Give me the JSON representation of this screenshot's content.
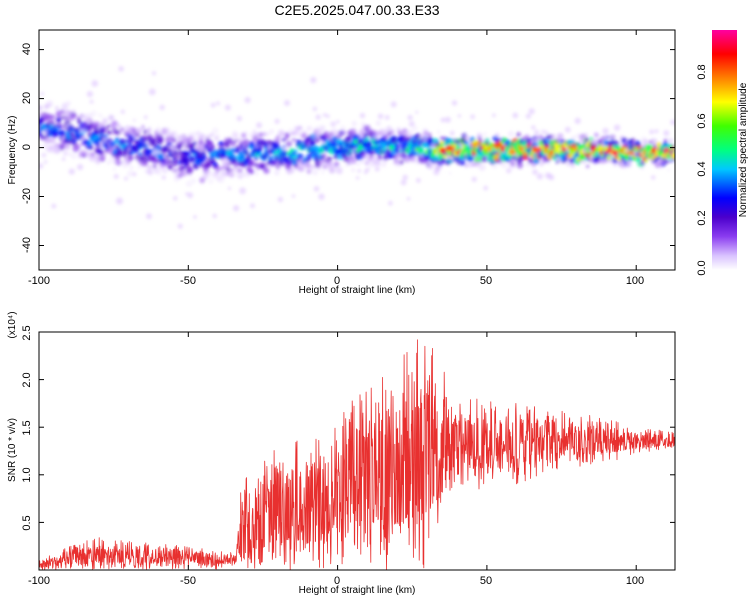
{
  "title": "C2E5.2025.047.00.33.E33",
  "colors": {
    "snr_line": "#e8302f",
    "colormap": [
      "#ffffff",
      "#e2ccff",
      "#8a3cf0",
      "#4b00cc",
      "#0000ff",
      "#00c8ff",
      "#00ff80",
      "#40ff00",
      "#ffff00",
      "#ff8000",
      "#ff0000",
      "#ff00a0"
    ]
  },
  "chart_data": [
    {
      "type": "heatmap",
      "title": "C2E5.2025.047.00.33.E33",
      "xlabel": "Height of straight line (km)",
      "ylabel": "Frequency (Hz)",
      "xlim": [
        -100,
        113
      ],
      "ylim": [
        -50,
        48
      ],
      "x_ticks": [
        "-100",
        "-50",
        "0",
        "50",
        "100"
      ],
      "y_ticks": [
        "-40",
        "-20",
        "0",
        "20",
        "40"
      ],
      "colorbar_label": "Normalized spectral amplitude",
      "colorbar_range": [
        0,
        0.97
      ],
      "colorbar_ticks": [
        "0.0",
        "0.2",
        "0.4",
        "0.6",
        "0.8"
      ],
      "ridge": [
        {
          "x": -100,
          "y": 8
        },
        {
          "x": -90,
          "y": 7
        },
        {
          "x": -80,
          "y": 3
        },
        {
          "x": -70,
          "y": 1
        },
        {
          "x": -60,
          "y": -1
        },
        {
          "x": -50,
          "y": -4
        },
        {
          "x": -40,
          "y": -3
        },
        {
          "x": -30,
          "y": -3
        },
        {
          "x": -20,
          "y": -2
        },
        {
          "x": -10,
          "y": -1
        },
        {
          "x": 0,
          "y": 0
        },
        {
          "x": 10,
          "y": 1
        },
        {
          "x": 20,
          "y": 1
        },
        {
          "x": 30,
          "y": -1
        },
        {
          "x": 40,
          "y": -1
        },
        {
          "x": 50,
          "y": -1
        },
        {
          "x": 60,
          "y": -1
        },
        {
          "x": 70,
          "y": -1
        },
        {
          "x": 80,
          "y": -1
        },
        {
          "x": 90,
          "y": -1
        },
        {
          "x": 100,
          "y": -2
        },
        {
          "x": 113,
          "y": -2
        }
      ],
      "band_halfwidth_hz": [
        {
          "x": -100,
          "y": 8
        },
        {
          "x": -50,
          "y": 8
        },
        {
          "x": -25,
          "y": 7
        },
        {
          "x": 0,
          "y": 7
        },
        {
          "x": 30,
          "y": 5
        },
        {
          "x": 60,
          "y": 4
        },
        {
          "x": 113,
          "y": 3
        }
      ],
      "peak_amplitude": [
        {
          "x": -100,
          "y": 0.35
        },
        {
          "x": -50,
          "y": 0.35
        },
        {
          "x": -30,
          "y": 0.4
        },
        {
          "x": 0,
          "y": 0.45
        },
        {
          "x": 25,
          "y": 0.5
        },
        {
          "x": 35,
          "y": 0.8
        },
        {
          "x": 70,
          "y": 0.9
        },
        {
          "x": 113,
          "y": 0.85
        }
      ]
    },
    {
      "type": "line",
      "xlabel": "Height of straight line (km)",
      "ylabel": "SNR (10 * v/v)",
      "y_multiplier": "(x10⁴)",
      "xlim": [
        -100,
        113
      ],
      "ylim": [
        0,
        2.5
      ],
      "x_ticks": [
        "-100",
        "-50",
        "0",
        "50",
        "100"
      ],
      "y_ticks": [
        "0.5",
        "1.0",
        "1.5",
        "2.0",
        "2.5"
      ],
      "envelope": [
        {
          "x": -100,
          "mean": 0.05,
          "max": 0.1
        },
        {
          "x": -90,
          "mean": 0.12,
          "max": 0.25
        },
        {
          "x": -80,
          "mean": 0.15,
          "max": 0.35
        },
        {
          "x": -70,
          "mean": 0.14,
          "max": 0.3
        },
        {
          "x": -60,
          "mean": 0.15,
          "max": 0.3
        },
        {
          "x": -50,
          "mean": 0.12,
          "max": 0.25
        },
        {
          "x": -40,
          "mean": 0.1,
          "max": 0.2
        },
        {
          "x": -34,
          "mean": 0.12,
          "max": 0.2
        },
        {
          "x": -32,
          "mean": 0.4,
          "max": 1.0
        },
        {
          "x": -20,
          "mean": 0.55,
          "max": 1.3
        },
        {
          "x": -10,
          "mean": 0.55,
          "max": 1.4
        },
        {
          "x": 0,
          "mean": 0.7,
          "max": 1.7
        },
        {
          "x": 10,
          "mean": 0.85,
          "max": 2.0
        },
        {
          "x": 20,
          "mean": 1.0,
          "max": 2.3
        },
        {
          "x": 30,
          "mean": 1.2,
          "max": 2.5
        },
        {
          "x": 40,
          "mean": 1.3,
          "max": 1.8
        },
        {
          "x": 50,
          "mean": 1.3,
          "max": 1.8
        },
        {
          "x": 60,
          "mean": 1.3,
          "max": 1.75
        },
        {
          "x": 70,
          "mean": 1.35,
          "max": 1.7
        },
        {
          "x": 80,
          "mean": 1.35,
          "max": 1.65
        },
        {
          "x": 90,
          "mean": 1.35,
          "max": 1.6
        },
        {
          "x": 100,
          "mean": 1.35,
          "max": 1.5
        },
        {
          "x": 113,
          "mean": 1.35,
          "max": 1.45
        }
      ]
    }
  ]
}
